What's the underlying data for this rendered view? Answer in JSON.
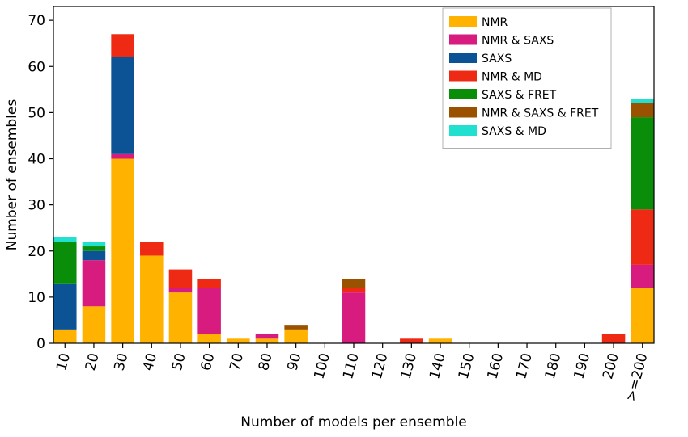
{
  "chart_data": {
    "type": "bar",
    "stacked": true,
    "xlabel": "Number of models per ensemble",
    "ylabel": "Number of ensembles",
    "ylim": [
      0,
      73
    ],
    "yticks": [
      0,
      10,
      20,
      30,
      40,
      50,
      60,
      70
    ],
    "categories": [
      "10",
      "20",
      "30",
      "40",
      "50",
      "60",
      "70",
      "80",
      "90",
      "100",
      "110",
      "120",
      "130",
      "140",
      "150",
      "160",
      "170",
      "180",
      "190",
      "200",
      ">=200"
    ],
    "legend_position": "top-right",
    "grid": false,
    "series": [
      {
        "name": "NMR",
        "color": "#FFB300",
        "values": [
          3,
          8,
          40,
          19,
          11,
          2,
          1,
          1,
          3,
          0,
          0,
          0,
          0,
          1,
          0,
          0,
          0,
          0,
          0,
          0,
          12
        ]
      },
      {
        "name": "NMR & SAXS",
        "color": "#D81B7F",
        "values": [
          0,
          10,
          1,
          0,
          1,
          10,
          0,
          1,
          0,
          0,
          11,
          0,
          0,
          0,
          0,
          0,
          0,
          0,
          0,
          0,
          5
        ]
      },
      {
        "name": "SAXS",
        "color": "#0B5394",
        "values": [
          10,
          2,
          21,
          0,
          0,
          0,
          0,
          0,
          0,
          0,
          0,
          0,
          0,
          0,
          0,
          0,
          0,
          0,
          0,
          0,
          0
        ]
      },
      {
        "name": "NMR & MD",
        "color": "#EE2A15",
        "values": [
          0,
          0,
          5,
          3,
          4,
          2,
          0,
          0,
          0,
          0,
          1,
          0,
          1,
          0,
          0,
          0,
          0,
          0,
          0,
          2,
          12
        ]
      },
      {
        "name": "SAXS & FRET",
        "color": "#0A8E0A",
        "values": [
          9,
          1,
          0,
          0,
          0,
          0,
          0,
          0,
          0,
          0,
          0,
          0,
          0,
          0,
          0,
          0,
          0,
          0,
          0,
          0,
          20
        ]
      },
      {
        "name": "NMR & SAXS & FRET",
        "color": "#9A5200",
        "values": [
          0,
          0,
          0,
          0,
          0,
          0,
          0,
          0,
          1,
          0,
          2,
          0,
          0,
          0,
          0,
          0,
          0,
          0,
          0,
          0,
          3
        ]
      },
      {
        "name": "SAXS & MD",
        "color": "#22E0CF",
        "values": [
          1,
          1,
          0,
          0,
          0,
          0,
          0,
          0,
          0,
          0,
          0,
          0,
          0,
          0,
          0,
          0,
          0,
          0,
          0,
          0,
          1
        ]
      }
    ]
  }
}
